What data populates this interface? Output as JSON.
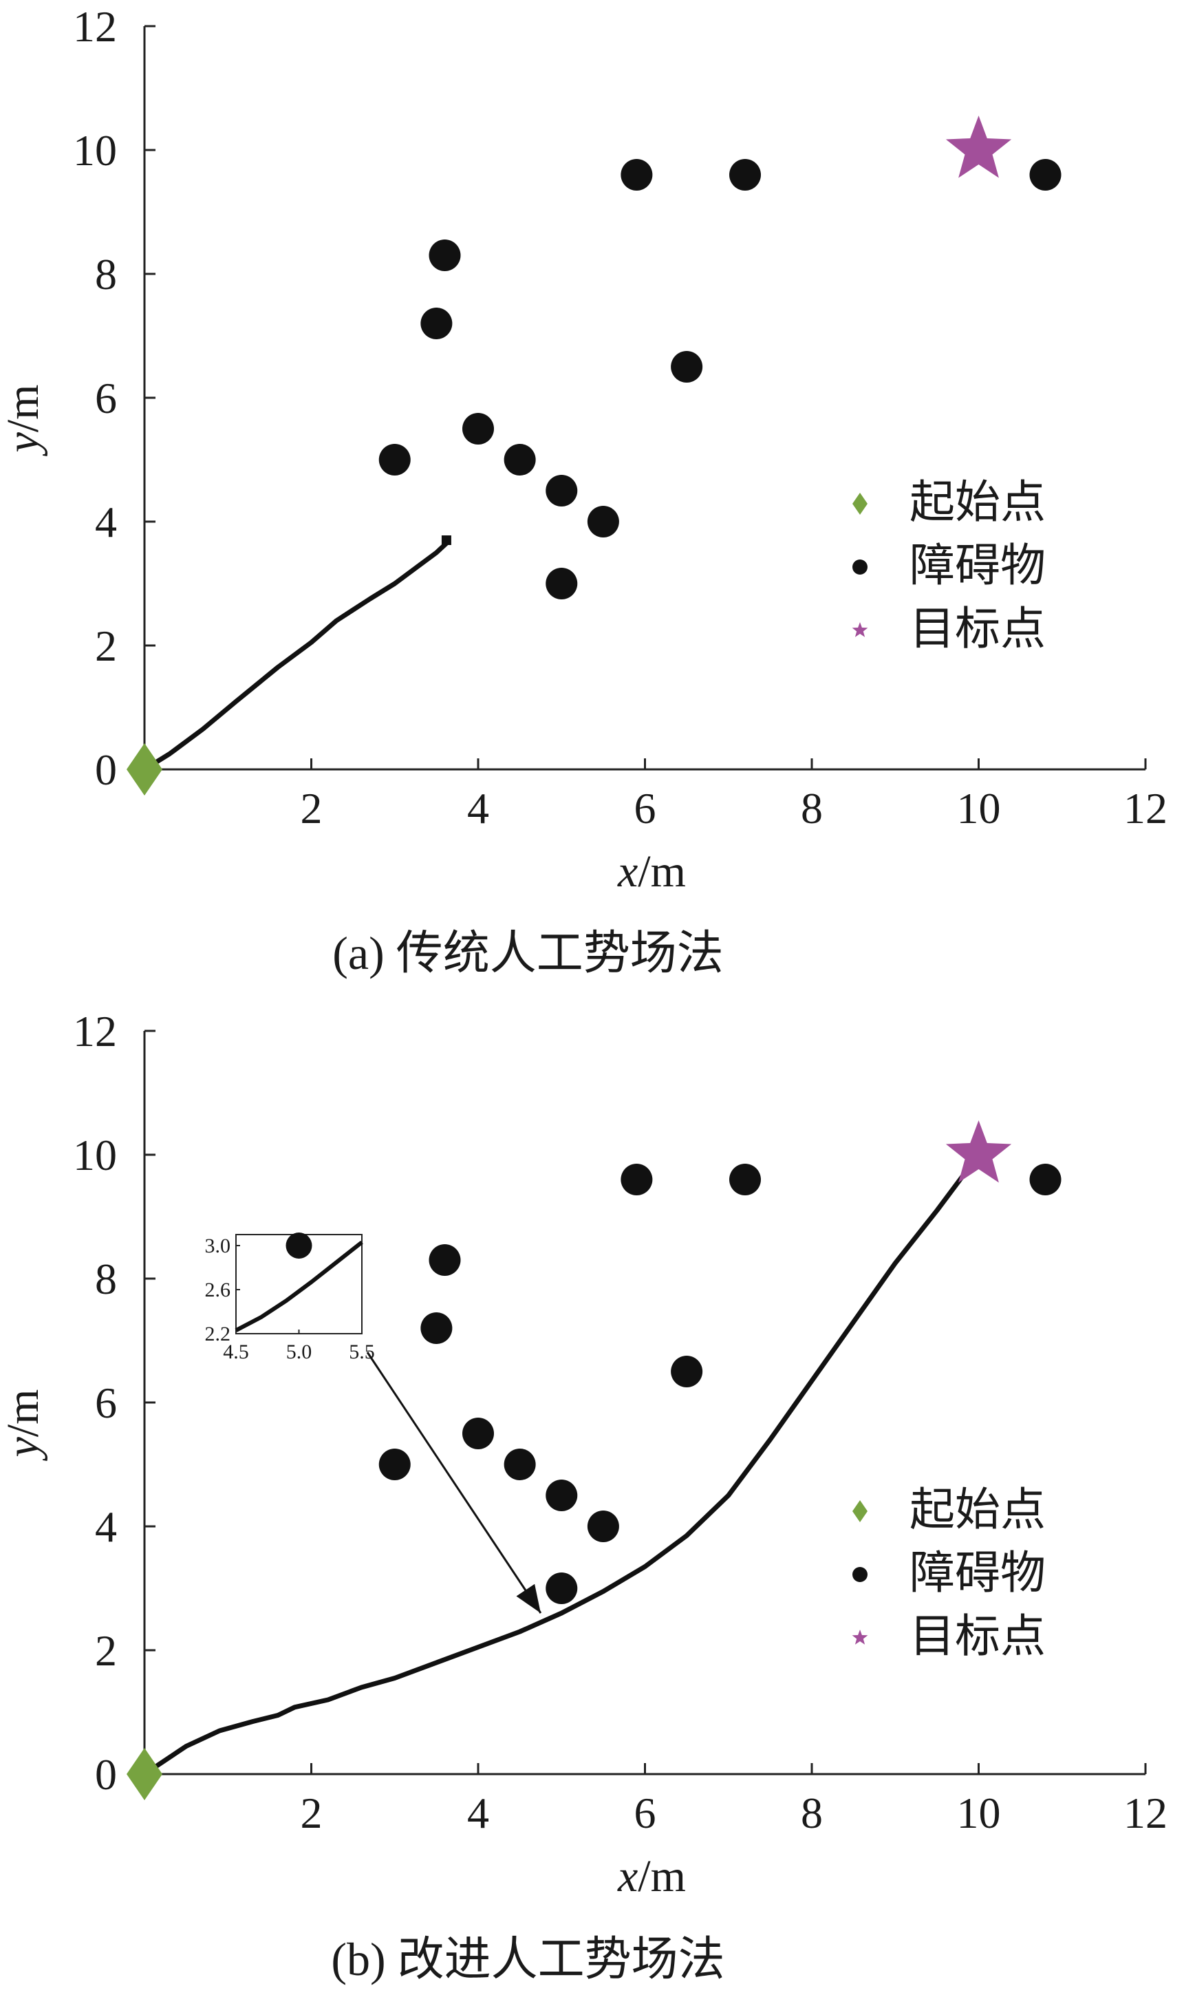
{
  "chart_data": [
    {
      "type": "scatter",
      "caption": "(a) 传统人工势场法",
      "xlabel_var": "x",
      "xlabel_unit": "/m",
      "ylabel_var": "y",
      "ylabel_unit": "/m",
      "xlim": [
        0,
        12
      ],
      "ylim": [
        0,
        12
      ],
      "xticks": [
        2,
        4,
        6,
        8,
        10,
        12
      ],
      "yticks": [
        0,
        2,
        4,
        6,
        8,
        10,
        12
      ],
      "legend": {
        "position": "right-middle",
        "items": [
          {
            "label": "起始点",
            "marker": "diamond",
            "color": "#77a340"
          },
          {
            "label": "障碍物",
            "marker": "circle",
            "color": "#111111"
          },
          {
            "label": "目标点",
            "marker": "star",
            "color": "#a24f9a"
          }
        ]
      },
      "start": {
        "x": 0,
        "y": 0
      },
      "goal": {
        "x": 10,
        "y": 10
      },
      "obstacles": [
        {
          "x": 3.0,
          "y": 5.0
        },
        {
          "x": 3.5,
          "y": 7.2
        },
        {
          "x": 3.6,
          "y": 8.3
        },
        {
          "x": 4.0,
          "y": 5.5
        },
        {
          "x": 4.5,
          "y": 5.0
        },
        {
          "x": 5.0,
          "y": 4.5
        },
        {
          "x": 5.0,
          "y": 3.0
        },
        {
          "x": 5.5,
          "y": 4.0
        },
        {
          "x": 5.9,
          "y": 9.6
        },
        {
          "x": 6.5,
          "y": 6.5
        },
        {
          "x": 7.2,
          "y": 9.6
        },
        {
          "x": 10.8,
          "y": 9.6
        }
      ],
      "path": {
        "x": [
          0,
          0.3,
          0.7,
          1.1,
          1.6,
          2.0,
          2.3,
          2.7,
          3.0,
          3.3,
          3.5,
          3.62,
          3.62
        ],
        "y": [
          0,
          0.25,
          0.65,
          1.1,
          1.65,
          2.05,
          2.4,
          2.75,
          3.0,
          3.3,
          3.5,
          3.65,
          3.7
        ]
      }
    },
    {
      "type": "scatter",
      "caption": "(b) 改进人工势场法",
      "xlabel_var": "x",
      "xlabel_unit": "/m",
      "ylabel_var": "y",
      "ylabel_unit": "/m",
      "xlim": [
        0,
        12
      ],
      "ylim": [
        0,
        12
      ],
      "xticks": [
        2,
        4,
        6,
        8,
        10,
        12
      ],
      "yticks": [
        0,
        2,
        4,
        6,
        8,
        10,
        12
      ],
      "legend": {
        "position": "right-middle",
        "items": [
          {
            "label": "起始点",
            "marker": "diamond",
            "color": "#77a340"
          },
          {
            "label": "障碍物",
            "marker": "circle",
            "color": "#111111"
          },
          {
            "label": "目标点",
            "marker": "star",
            "color": "#a24f9a"
          }
        ]
      },
      "start": {
        "x": 0,
        "y": 0
      },
      "goal": {
        "x": 10,
        "y": 10
      },
      "obstacles": [
        {
          "x": 3.0,
          "y": 5.0
        },
        {
          "x": 3.5,
          "y": 7.2
        },
        {
          "x": 3.6,
          "y": 8.3
        },
        {
          "x": 4.0,
          "y": 5.5
        },
        {
          "x": 4.5,
          "y": 5.0
        },
        {
          "x": 5.0,
          "y": 4.5
        },
        {
          "x": 5.0,
          "y": 3.0
        },
        {
          "x": 5.5,
          "y": 4.0
        },
        {
          "x": 5.9,
          "y": 9.6
        },
        {
          "x": 6.5,
          "y": 6.5
        },
        {
          "x": 7.2,
          "y": 9.6
        },
        {
          "x": 10.8,
          "y": 9.6
        }
      ],
      "path": {
        "x": [
          0,
          0.5,
          0.9,
          1.3,
          1.6,
          1.8,
          2.2,
          2.6,
          3.0,
          3.5,
          4.0,
          4.5,
          5.0,
          5.5,
          6.0,
          6.5,
          7.0,
          7.5,
          8.0,
          8.5,
          9.0,
          9.5,
          10.0
        ],
        "y": [
          0,
          0.45,
          0.7,
          0.85,
          0.95,
          1.08,
          1.2,
          1.4,
          1.55,
          1.8,
          2.05,
          2.3,
          2.6,
          2.95,
          3.35,
          3.85,
          4.5,
          5.4,
          6.35,
          7.3,
          8.25,
          9.1,
          10.0
        ]
      },
      "inset": {
        "xlim": [
          4.5,
          5.5
        ],
        "ylim": [
          2.2,
          3.1
        ],
        "xticks": [
          "4.5",
          "5.0",
          "5.5"
        ],
        "yticks": [
          "2.2",
          "2.6",
          "3.0"
        ],
        "obstacle": {
          "x": 5.0,
          "y": 3.0
        },
        "path": {
          "x": [
            4.5,
            4.7,
            4.9,
            5.1,
            5.3,
            5.5
          ],
          "y": [
            2.23,
            2.35,
            2.5,
            2.67,
            2.85,
            3.03
          ]
        },
        "arrow_target": {
          "x": 4.75,
          "y": 2.6
        }
      }
    }
  ]
}
